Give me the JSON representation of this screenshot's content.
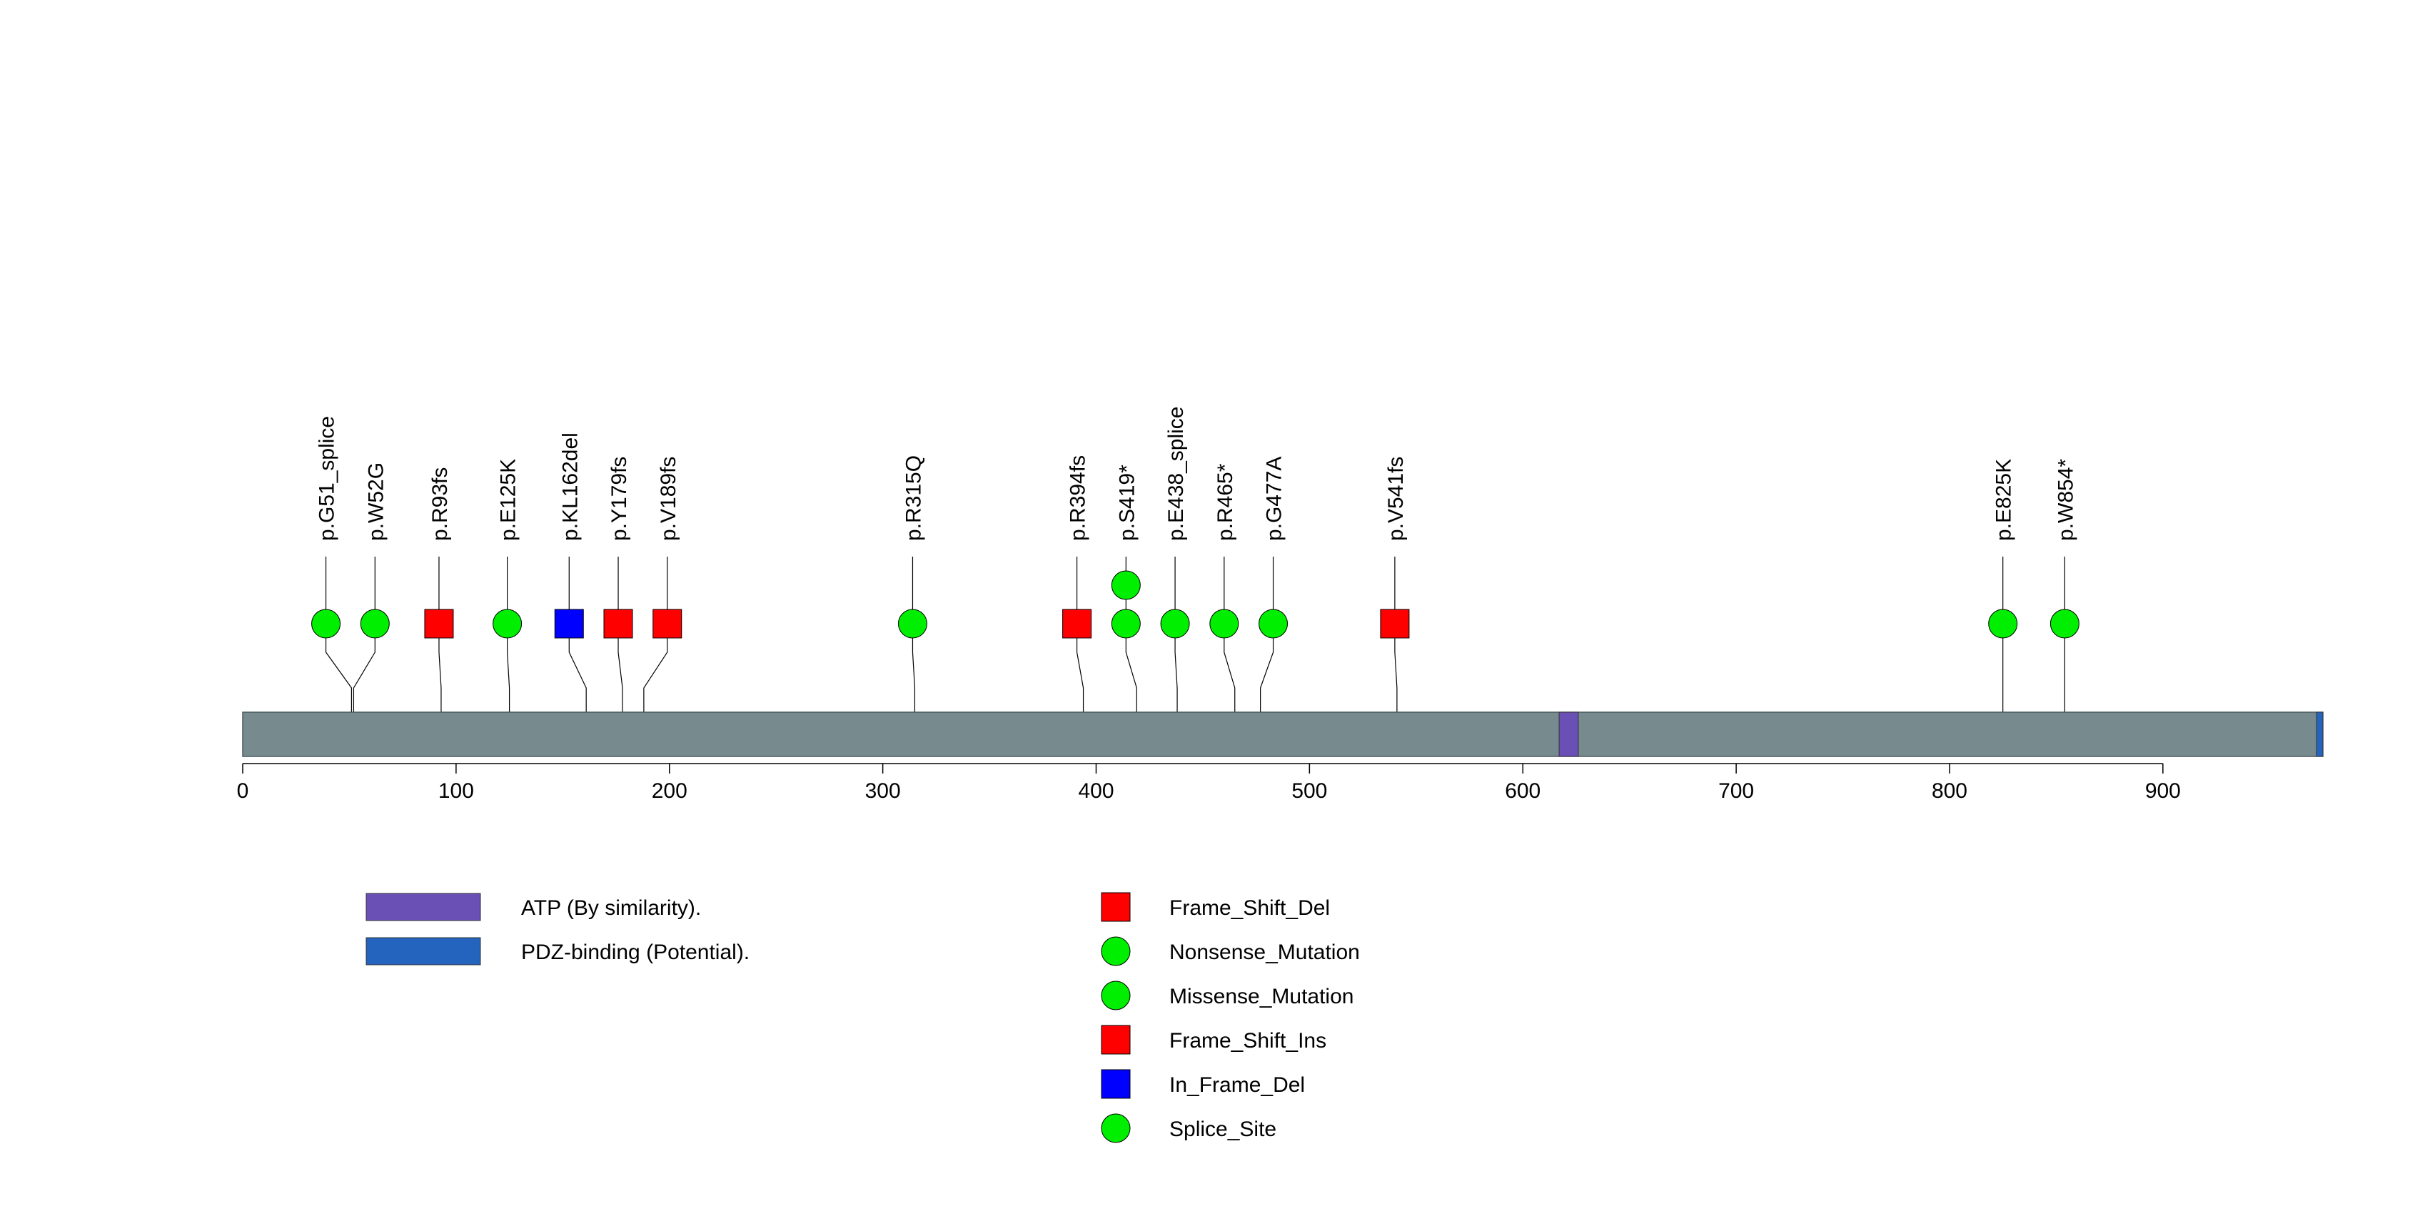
{
  "chart_data": {
    "type": "lollipop",
    "protein_length": 975,
    "axis": {
      "xlim": [
        0,
        975
      ],
      "ticks": [
        0,
        100,
        200,
        300,
        400,
        500,
        600,
        700,
        800,
        900
      ],
      "tick_labels": [
        "0",
        "100",
        "200",
        "300",
        "400",
        "500",
        "600",
        "700",
        "800",
        "900"
      ]
    },
    "colors": {
      "protein_bar": "#778a8e",
      "atp_domain": "#6a4fb5",
      "pdz_domain": "#2463be",
      "frame_shift_del": "#ff0000",
      "nonsense": "#00ee00",
      "missense": "#00ee00",
      "frame_shift_ins": "#ff0000",
      "in_frame_del": "#0000ff",
      "splice_site": "#00ee00",
      "stem": "#000000"
    },
    "domains": [
      {
        "name": "ATP (By similarity).",
        "start": 617,
        "end": 626,
        "color": "#6a4fb5"
      },
      {
        "name": "PDZ-binding (Potential).",
        "start": 972,
        "end": 975,
        "color": "#2463be"
      }
    ],
    "mutations": [
      {
        "label": "p.G51_splice",
        "position": 51,
        "display_x": 39,
        "count": 1,
        "type": "Splice_Site",
        "shape": "circle",
        "color": "#00ee00"
      },
      {
        "label": "p.W52G",
        "position": 52,
        "display_x": 62,
        "count": 1,
        "type": "Missense_Mutation",
        "shape": "circle",
        "color": "#00ee00"
      },
      {
        "label": "p.R93fs",
        "position": 93,
        "display_x": 92,
        "count": 1,
        "type": "Frame_Shift_Del",
        "shape": "square",
        "color": "#ff0000"
      },
      {
        "label": "p.E125K",
        "position": 125,
        "display_x": 124,
        "count": 1,
        "type": "Missense_Mutation",
        "shape": "circle",
        "color": "#00ee00"
      },
      {
        "label": "p.KL162del",
        "position": 161,
        "display_x": 153,
        "count": 1,
        "type": "In_Frame_Del",
        "shape": "square",
        "color": "#0000ff"
      },
      {
        "label": "p.Y179fs",
        "position": 178,
        "display_x": 176,
        "count": 1,
        "type": "Frame_Shift_Del",
        "shape": "square",
        "color": "#ff0000"
      },
      {
        "label": "p.V189fs",
        "position": 188,
        "display_x": 199,
        "count": 1,
        "type": "Frame_Shift_Del",
        "shape": "square",
        "color": "#ff0000"
      },
      {
        "label": "p.R315Q",
        "position": 315,
        "display_x": 314,
        "count": 1,
        "type": "Missense_Mutation",
        "shape": "circle",
        "color": "#00ee00"
      },
      {
        "label": "p.R394fs",
        "position": 394,
        "display_x": 391,
        "count": 1,
        "type": "Frame_Shift_Del",
        "shape": "square",
        "color": "#ff0000"
      },
      {
        "label": "p.S419*",
        "position": 419,
        "display_x": 414,
        "count": 2,
        "type": "Nonsense_Mutation",
        "shape": "circle",
        "color": "#00ee00"
      },
      {
        "label": "p.E438_splice",
        "position": 438,
        "display_x": 437,
        "count": 1,
        "type": "Splice_Site",
        "shape": "circle",
        "color": "#00ee00"
      },
      {
        "label": "p.R465*",
        "position": 465,
        "display_x": 460,
        "count": 1,
        "type": "Nonsense_Mutation",
        "shape": "circle",
        "color": "#00ee00"
      },
      {
        "label": "p.G477A",
        "position": 477,
        "display_x": 483,
        "count": 1,
        "type": "Missense_Mutation",
        "shape": "circle",
        "color": "#00ee00"
      },
      {
        "label": "p.V541fs",
        "position": 541,
        "display_x": 540,
        "count": 1,
        "type": "Frame_Shift_Del",
        "shape": "square",
        "color": "#ff0000"
      },
      {
        "label": "p.E825K",
        "position": 825,
        "display_x": 825,
        "count": 1,
        "type": "Missense_Mutation",
        "shape": "circle",
        "color": "#00ee00"
      },
      {
        "label": "p.W854*",
        "position": 854,
        "display_x": 854,
        "count": 1,
        "type": "Nonsense_Mutation",
        "shape": "circle",
        "color": "#00ee00"
      }
    ],
    "legend_domains": [
      {
        "label": "ATP (By similarity).",
        "color": "#6a4fb5"
      },
      {
        "label": "PDZ-binding (Potential).",
        "color": "#2463be"
      }
    ],
    "legend_mutations": [
      {
        "label": "Frame_Shift_Del",
        "shape": "square",
        "color": "#ff0000"
      },
      {
        "label": "Nonsense_Mutation",
        "shape": "circle",
        "color": "#00ee00"
      },
      {
        "label": "Missense_Mutation",
        "shape": "circle",
        "color": "#00ee00"
      },
      {
        "label": "Frame_Shift_Ins",
        "shape": "square",
        "color": "#ff0000"
      },
      {
        "label": "In_Frame_Del",
        "shape": "square",
        "color": "#0000ff"
      },
      {
        "label": "Splice_Site",
        "shape": "circle",
        "color": "#00ee00"
      }
    ]
  }
}
